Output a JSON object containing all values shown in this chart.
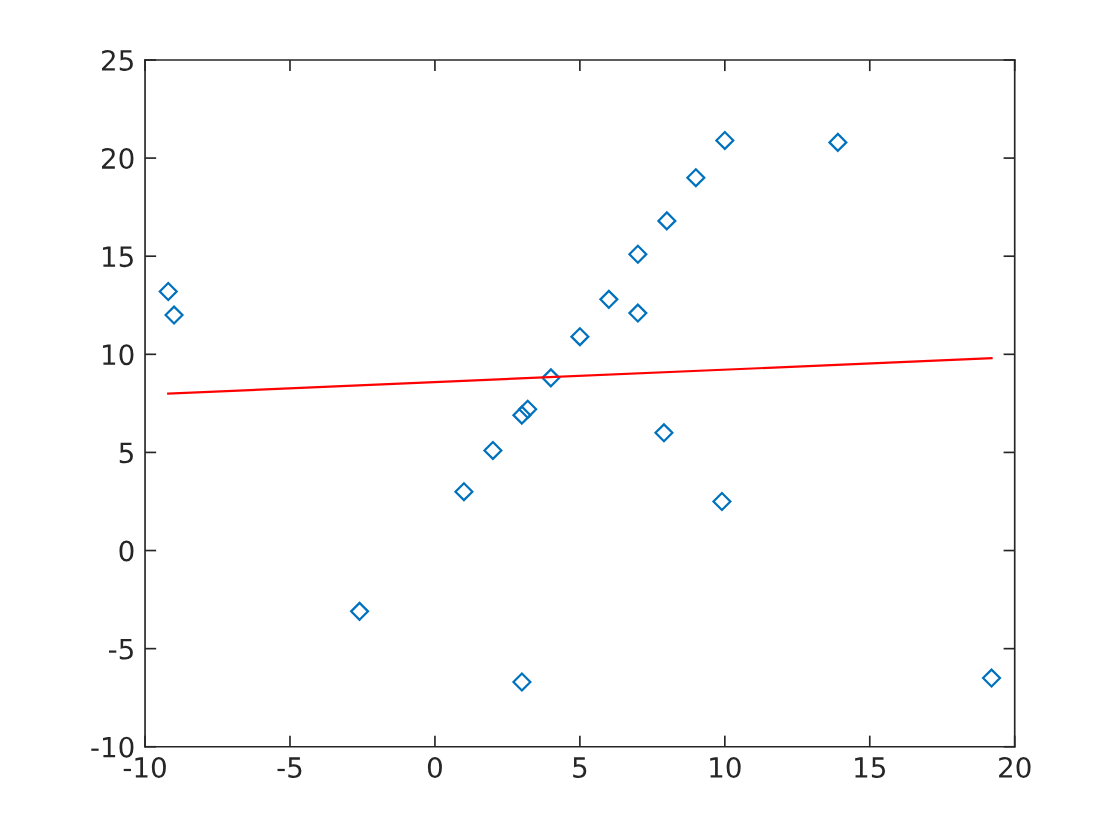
{
  "chart_data": {
    "type": "scatter",
    "xlim": [
      -10,
      20
    ],
    "ylim": [
      -10,
      25
    ],
    "xticks": [
      -10,
      -5,
      0,
      5,
      10,
      15,
      20
    ],
    "yticks": [
      -10,
      -5,
      0,
      5,
      10,
      15,
      20,
      25
    ],
    "series": [
      {
        "color": "#0072bd",
        "marker": "diamond",
        "x": [
          -9.2,
          -9.0,
          -2.6,
          1.0,
          2.0,
          3.0,
          3.2,
          3.0,
          4.0,
          5.0,
          6.0,
          7.0,
          7.0,
          7.9,
          8.0,
          9.0,
          9.9,
          10.0,
          13.9,
          19.2
        ],
        "values": [
          13.2,
          12.0,
          -3.1,
          3.0,
          5.1,
          6.9,
          7.2,
          -6.7,
          8.8,
          10.9,
          12.8,
          15.1,
          12.1,
          6.0,
          16.8,
          19.0,
          2.5,
          20.9,
          20.8,
          -6.5
        ]
      },
      {
        "type": "line",
        "color": "#ff0000",
        "marker": "none",
        "line_style": "solid",
        "x": [
          -9.2,
          19.2
        ],
        "values": [
          8.0,
          9.8
        ]
      }
    ]
  }
}
